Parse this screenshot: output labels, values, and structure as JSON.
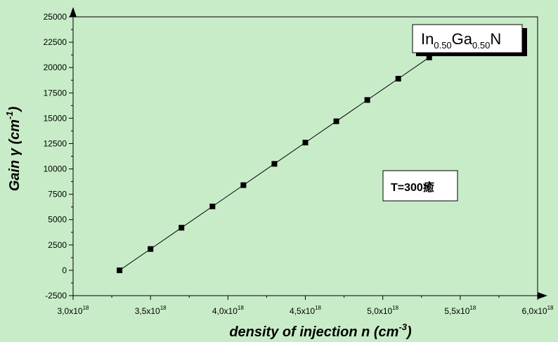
{
  "chart_data": {
    "type": "scatter",
    "title": "",
    "xlabel": {
      "text": "density of injection n (cm",
      "sup": "-3",
      "close": ")"
    },
    "ylabel": {
      "text": "Gain γ (cm",
      "sup": "-1",
      "close": ")"
    },
    "xlim": [
      3e+18,
      6e+18
    ],
    "ylim": [
      -2500,
      25000
    ],
    "x_ticks": [
      {
        "value": 3e+18,
        "mant": "3,0x10",
        "exp": "18"
      },
      {
        "value": 3.5e+18,
        "mant": "3,5x10",
        "exp": "18"
      },
      {
        "value": 4e+18,
        "mant": "4,0x10",
        "exp": "18"
      },
      {
        "value": 4.5e+18,
        "mant": "4,5x10",
        "exp": "18"
      },
      {
        "value": 5e+18,
        "mant": "5,0x10",
        "exp": "18"
      },
      {
        "value": 5.5e+18,
        "mant": "5,5x10",
        "exp": "18"
      },
      {
        "value": 6e+18,
        "mant": "6,0x10",
        "exp": "18"
      }
    ],
    "y_ticks": [
      {
        "value": -2500,
        "label": "-2500"
      },
      {
        "value": 0,
        "label": "0"
      },
      {
        "value": 2500,
        "label": "2500"
      },
      {
        "value": 5000,
        "label": "5000"
      },
      {
        "value": 7500,
        "label": "7500"
      },
      {
        "value": 10000,
        "label": "10000"
      },
      {
        "value": 12500,
        "label": "12500"
      },
      {
        "value": 15000,
        "label": "15000"
      },
      {
        "value": 17500,
        "label": "17500"
      },
      {
        "value": 20000,
        "label": "20000"
      },
      {
        "value": 22500,
        "label": "22500"
      },
      {
        "value": 25000,
        "label": "25000"
      }
    ],
    "series": [
      {
        "x": [
          3.3e+18,
          3.5e+18,
          3.7e+18,
          3.9e+18,
          4.1e+18,
          4.3e+18,
          4.5e+18,
          4.7e+18,
          4.9e+18,
          5.1e+18,
          5.3e+18
        ],
        "y": [
          0,
          2100,
          4200,
          6300,
          8400,
          10500,
          12600,
          14700,
          16800,
          18900,
          21000
        ],
        "marker": "square",
        "line": true
      }
    ],
    "annotations": [
      {
        "id": "material",
        "parts": [
          {
            "text": "In",
            "sub": false
          },
          {
            "text": "0.50",
            "sub": true
          },
          {
            "text": "Ga",
            "sub": false
          },
          {
            "text": "0.50",
            "sub": true
          },
          {
            "text": "N",
            "sub": false
          }
        ]
      },
      {
        "id": "temperature",
        "text": "T=300癒"
      }
    ],
    "grid": false,
    "legend": "none",
    "colors": {
      "background": "#c8ecc8",
      "plot_background": "#c8ecc8",
      "axes": "#000000",
      "marker": "#000000"
    }
  }
}
